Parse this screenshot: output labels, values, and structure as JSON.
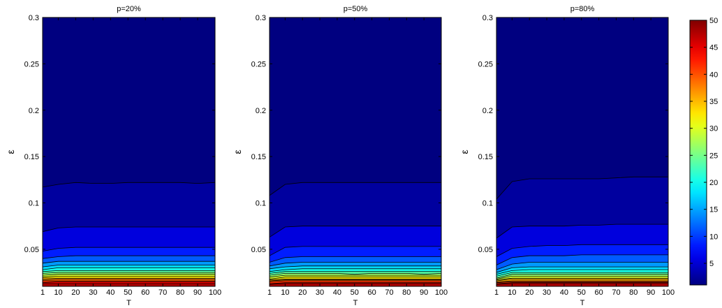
{
  "chart_data": {
    "type": "contour",
    "colormap": "jet",
    "colorbar": {
      "min": 1,
      "max": 50,
      "ticks": [
        "5",
        "10",
        "15",
        "20",
        "25",
        "30",
        "35",
        "40",
        "45",
        "50"
      ],
      "placement": "right"
    },
    "panels": [
      {
        "title": "p=20%",
        "xlabel": "T",
        "ylabel": "ε",
        "xlim": [
          1,
          100
        ],
        "ylim": [
          0.01,
          0.3
        ],
        "xticks": [
          "1",
          "10",
          "20",
          "30",
          "40",
          "50",
          "60",
          "70",
          "80",
          "90",
          "100"
        ],
        "yticks": [
          "0.05",
          "0.1",
          "0.15",
          "0.2",
          "0.25",
          "0.3"
        ],
        "x": [
          1,
          10,
          20,
          30,
          40,
          50,
          60,
          70,
          80,
          90,
          100
        ],
        "contours": [
          {
            "level": 1,
            "eps": [
              0.117,
              0.12,
              0.122,
              0.121,
              0.121,
              0.122,
              0.122,
              0.122,
              0.122,
              0.121,
              0.122
            ]
          },
          {
            "level": 4,
            "eps": [
              0.069,
              0.073,
              0.074,
              0.074,
              0.074,
              0.074,
              0.074,
              0.074,
              0.074,
              0.074,
              0.074
            ]
          },
          {
            "level": 7,
            "eps": [
              0.048,
              0.051,
              0.052,
              0.052,
              0.052,
              0.052,
              0.052,
              0.052,
              0.052,
              0.052,
              0.052
            ]
          },
          {
            "level": 10,
            "eps": [
              0.04,
              0.042,
              0.043,
              0.043,
              0.043,
              0.043,
              0.043,
              0.043,
              0.043,
              0.043,
              0.043
            ]
          },
          {
            "level": 13,
            "eps": [
              0.035,
              0.037,
              0.037,
              0.037,
              0.037,
              0.037,
              0.037,
              0.037,
              0.037,
              0.037,
              0.037
            ]
          },
          {
            "level": 16,
            "eps": [
              0.031,
              0.033,
              0.033,
              0.033,
              0.033,
              0.033,
              0.033,
              0.033,
              0.033,
              0.033,
              0.033
            ]
          },
          {
            "level": 19,
            "eps": [
              0.028,
              0.03,
              0.03,
              0.03,
              0.03,
              0.03,
              0.03,
              0.03,
              0.03,
              0.03,
              0.03
            ]
          },
          {
            "level": 22,
            "eps": [
              0.026,
              0.027,
              0.027,
              0.027,
              0.027,
              0.027,
              0.027,
              0.027,
              0.027,
              0.027,
              0.027
            ]
          },
          {
            "level": 25,
            "eps": [
              0.024,
              0.025,
              0.025,
              0.025,
              0.025,
              0.025,
              0.025,
              0.025,
              0.025,
              0.025,
              0.025
            ]
          },
          {
            "level": 28,
            "eps": [
              0.022,
              0.023,
              0.023,
              0.023,
              0.023,
              0.023,
              0.023,
              0.023,
              0.023,
              0.023,
              0.023
            ]
          },
          {
            "level": 31,
            "eps": [
              0.02,
              0.021,
              0.021,
              0.021,
              0.021,
              0.021,
              0.021,
              0.021,
              0.021,
              0.021,
              0.021
            ]
          },
          {
            "level": 34,
            "eps": [
              0.019,
              0.019,
              0.019,
              0.019,
              0.019,
              0.019,
              0.019,
              0.019,
              0.019,
              0.019,
              0.019
            ]
          },
          {
            "level": 37,
            "eps": [
              0.017,
              0.018,
              0.018,
              0.018,
              0.018,
              0.018,
              0.018,
              0.018,
              0.018,
              0.018,
              0.018
            ]
          },
          {
            "level": 40,
            "eps": [
              0.016,
              0.016,
              0.016,
              0.016,
              0.016,
              0.016,
              0.016,
              0.016,
              0.016,
              0.016,
              0.016
            ]
          },
          {
            "level": 43,
            "eps": [
              0.014,
              0.015,
              0.015,
              0.015,
              0.015,
              0.015,
              0.015,
              0.015,
              0.015,
              0.015,
              0.015
            ]
          },
          {
            "level": 46,
            "eps": [
              0.013,
              0.013,
              0.013,
              0.013,
              0.013,
              0.013,
              0.013,
              0.013,
              0.013,
              0.013,
              0.013
            ]
          }
        ]
      },
      {
        "title": "p=50%",
        "xlabel": "T",
        "ylabel": "ε",
        "xlim": [
          1,
          100
        ],
        "ylim": [
          0.01,
          0.3
        ],
        "xticks": [
          "1",
          "10",
          "20",
          "30",
          "40",
          "50",
          "60",
          "70",
          "80",
          "90",
          "100"
        ],
        "yticks": [
          "0.05",
          "0.1",
          "0.15",
          "0.2",
          "0.25",
          "0.3"
        ],
        "x": [
          1,
          10,
          20,
          30,
          40,
          50,
          60,
          70,
          80,
          90,
          100
        ],
        "contours": [
          {
            "level": 1,
            "eps": [
              0.108,
              0.12,
              0.122,
              0.122,
              0.122,
              0.122,
              0.122,
              0.122,
              0.122,
              0.122,
              0.122
            ]
          },
          {
            "level": 4,
            "eps": [
              0.063,
              0.074,
              0.075,
              0.075,
              0.075,
              0.075,
              0.075,
              0.075,
              0.075,
              0.075,
              0.075
            ]
          },
          {
            "level": 7,
            "eps": [
              0.043,
              0.052,
              0.053,
              0.053,
              0.053,
              0.053,
              0.053,
              0.053,
              0.053,
              0.053,
              0.053
            ]
          },
          {
            "level": 10,
            "eps": [
              0.036,
              0.041,
              0.042,
              0.042,
              0.042,
              0.042,
              0.042,
              0.042,
              0.042,
              0.042,
              0.042
            ]
          },
          {
            "level": 13,
            "eps": [
              0.032,
              0.035,
              0.036,
              0.036,
              0.036,
              0.036,
              0.036,
              0.036,
              0.036,
              0.036,
              0.036
            ]
          },
          {
            "level": 16,
            "eps": [
              0.029,
              0.031,
              0.032,
              0.032,
              0.032,
              0.032,
              0.032,
              0.032,
              0.032,
              0.032,
              0.032
            ]
          },
          {
            "level": 19,
            "eps": [
              0.026,
              0.028,
              0.029,
              0.029,
              0.029,
              0.029,
              0.029,
              0.029,
              0.029,
              0.029,
              0.029
            ]
          },
          {
            "level": 22,
            "eps": [
              0.024,
              0.026,
              0.026,
              0.026,
              0.026,
              0.026,
              0.026,
              0.026,
              0.026,
              0.026,
              0.026
            ]
          },
          {
            "level": 25,
            "eps": [
              0.022,
              0.024,
              0.024,
              0.024,
              0.024,
              0.023,
              0.024,
              0.024,
              0.024,
              0.023,
              0.024
            ]
          },
          {
            "level": 28,
            "eps": [
              0.02,
              0.022,
              0.022,
              0.022,
              0.022,
              0.022,
              0.022,
              0.022,
              0.022,
              0.022,
              0.022
            ]
          },
          {
            "level": 31,
            "eps": [
              0.018,
              0.02,
              0.02,
              0.02,
              0.02,
              0.02,
              0.02,
              0.02,
              0.02,
              0.02,
              0.02
            ]
          },
          {
            "level": 34,
            "eps": [
              0.017,
              0.018,
              0.018,
              0.018,
              0.018,
              0.018,
              0.018,
              0.018,
              0.018,
              0.018,
              0.018
            ]
          },
          {
            "level": 37,
            "eps": [
              0.016,
              0.017,
              0.017,
              0.017,
              0.017,
              0.017,
              0.017,
              0.017,
              0.017,
              0.017,
              0.017
            ]
          },
          {
            "level": 40,
            "eps": [
              0.015,
              0.016,
              0.016,
              0.016,
              0.016,
              0.016,
              0.016,
              0.016,
              0.016,
              0.016,
              0.016
            ]
          },
          {
            "level": 43,
            "eps": [
              0.013,
              0.014,
              0.014,
              0.014,
              0.014,
              0.014,
              0.014,
              0.014,
              0.014,
              0.014,
              0.014
            ]
          },
          {
            "level": 46,
            "eps": [
              0.012,
              0.013,
              0.013,
              0.013,
              0.013,
              0.013,
              0.013,
              0.013,
              0.013,
              0.013,
              0.013
            ]
          }
        ]
      },
      {
        "title": "p=80%",
        "xlabel": "T",
        "ylabel": "ε",
        "xlim": [
          1,
          100
        ],
        "ylim": [
          0.01,
          0.3
        ],
        "xticks": [
          "1",
          "10",
          "20",
          "30",
          "40",
          "50",
          "60",
          "70",
          "80",
          "90",
          "100"
        ],
        "yticks": [
          "0.05",
          "0.1",
          "0.15",
          "0.2",
          "0.25",
          "0.3"
        ],
        "x": [
          1,
          10,
          20,
          30,
          40,
          50,
          60,
          70,
          80,
          90,
          100
        ],
        "contours": [
          {
            "level": 1,
            "eps": [
              0.104,
              0.123,
              0.126,
              0.126,
              0.126,
              0.126,
              0.126,
              0.127,
              0.128,
              0.128,
              0.128
            ]
          },
          {
            "level": 4,
            "eps": [
              0.062,
              0.074,
              0.075,
              0.075,
              0.075,
              0.076,
              0.076,
              0.077,
              0.077,
              0.077,
              0.077
            ]
          },
          {
            "level": 7,
            "eps": [
              0.042,
              0.051,
              0.053,
              0.054,
              0.054,
              0.055,
              0.055,
              0.055,
              0.055,
              0.055,
              0.055
            ]
          },
          {
            "level": 10,
            "eps": [
              0.033,
              0.041,
              0.043,
              0.043,
              0.043,
              0.044,
              0.044,
              0.044,
              0.044,
              0.044,
              0.044
            ]
          },
          {
            "level": 13,
            "eps": [
              0.028,
              0.034,
              0.036,
              0.036,
              0.036,
              0.036,
              0.036,
              0.036,
              0.036,
              0.036,
              0.036
            ]
          },
          {
            "level": 16,
            "eps": [
              0.025,
              0.03,
              0.031,
              0.031,
              0.031,
              0.031,
              0.031,
              0.031,
              0.031,
              0.031,
              0.031
            ]
          },
          {
            "level": 19,
            "eps": [
              0.023,
              0.027,
              0.028,
              0.028,
              0.028,
              0.028,
              0.028,
              0.028,
              0.028,
              0.028,
              0.028
            ]
          },
          {
            "level": 22,
            "eps": [
              0.021,
              0.025,
              0.025,
              0.025,
              0.025,
              0.025,
              0.025,
              0.025,
              0.025,
              0.025,
              0.025
            ]
          },
          {
            "level": 25,
            "eps": [
              0.019,
              0.023,
              0.023,
              0.023,
              0.023,
              0.023,
              0.023,
              0.023,
              0.023,
              0.023,
              0.023
            ]
          },
          {
            "level": 28,
            "eps": [
              0.018,
              0.021,
              0.021,
              0.021,
              0.021,
              0.021,
              0.021,
              0.021,
              0.021,
              0.021,
              0.021
            ]
          },
          {
            "level": 31,
            "eps": [
              0.017,
              0.019,
              0.019,
              0.019,
              0.019,
              0.019,
              0.019,
              0.019,
              0.019,
              0.019,
              0.019
            ]
          },
          {
            "level": 34,
            "eps": [
              0.016,
              0.018,
              0.018,
              0.018,
              0.018,
              0.018,
              0.018,
              0.018,
              0.018,
              0.018,
              0.018
            ]
          },
          {
            "level": 37,
            "eps": [
              0.015,
              0.016,
              0.016,
              0.016,
              0.016,
              0.016,
              0.016,
              0.016,
              0.016,
              0.016,
              0.016
            ]
          },
          {
            "level": 40,
            "eps": [
              0.014,
              0.015,
              0.015,
              0.015,
              0.015,
              0.015,
              0.015,
              0.015,
              0.015,
              0.015,
              0.015
            ]
          },
          {
            "level": 43,
            "eps": [
              0.013,
              0.014,
              0.014,
              0.014,
              0.014,
              0.014,
              0.014,
              0.014,
              0.014,
              0.014,
              0.014
            ]
          },
          {
            "level": 46,
            "eps": [
              0.012,
              0.013,
              0.013,
              0.013,
              0.013,
              0.013,
              0.013,
              0.013,
              0.013,
              0.013,
              0.013
            ]
          }
        ]
      }
    ]
  }
}
